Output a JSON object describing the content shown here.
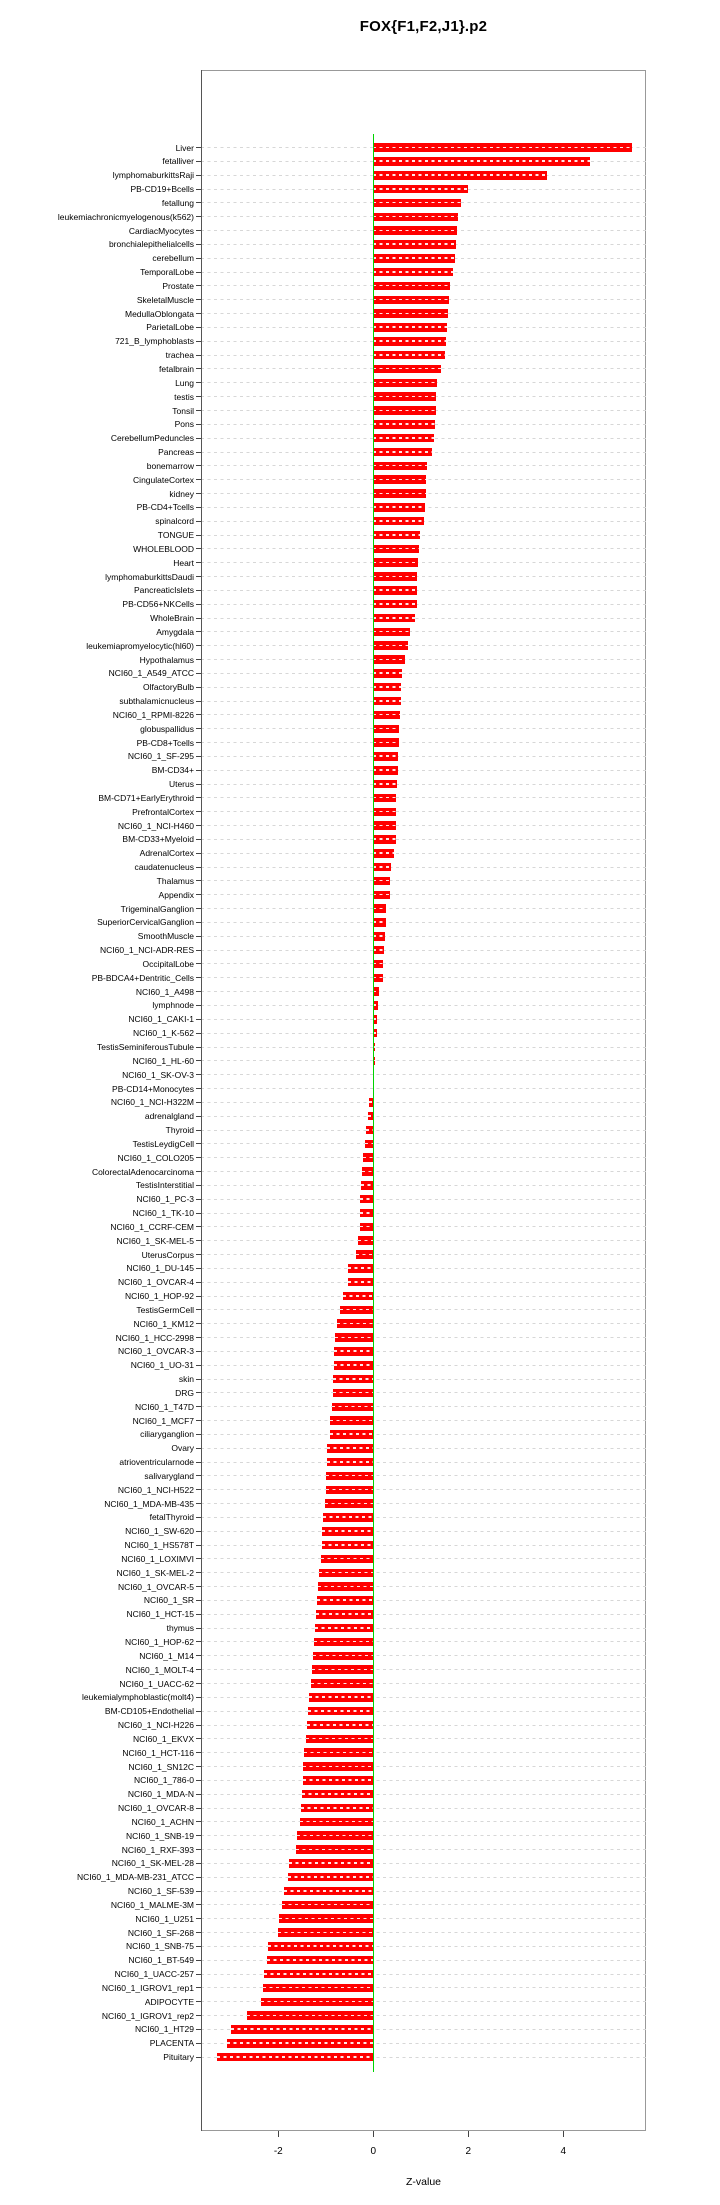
{
  "title": "FOX{F1,F2,J1}.p2",
  "chart_data": {
    "type": "bar",
    "orientation": "horizontal",
    "title": "FOX{F1,F2,J1}.p2",
    "xlabel": "Z-value",
    "x_ticks": [
      -2,
      0,
      2,
      4
    ],
    "xlim": [
      -3.63,
      5.74
    ],
    "grid": true,
    "bar_color": "#FF0000",
    "zero_line_color": "#00D400",
    "categories": [
      "Liver",
      "fetalliver",
      "lymphomaburkittsRaji",
      "PB-CD19+Bcells",
      "fetallung",
      "leukemiachronicmyelogenous(k562)",
      "CardiacMyocytes",
      "bronchialepithelialcells",
      "cerebellum",
      "TemporalLobe",
      "Prostate",
      "SkeletalMuscle",
      "MedullaOblongata",
      "ParietalLobe",
      "721_B_lymphoblasts",
      "trachea",
      "fetalbrain",
      "Lung",
      "testis",
      "Tonsil",
      "Pons",
      "CerebellumPeduncles",
      "Pancreas",
      "bonemarrow",
      "CingulateCortex",
      "kidney",
      "PB-CD4+Tcells",
      "spinalcord",
      "TONGUE",
      "WHOLEBLOOD",
      "Heart",
      "lymphomaburkittsDaudi",
      "PancreaticIslets",
      "PB-CD56+NKCells",
      "WholeBrain",
      "Amygdala",
      "leukemiapromyelocytic(hl60)",
      "Hypothalamus",
      "NCI60_1_A549_ATCC",
      "OlfactoryBulb",
      "subthalamicnucleus",
      "NCI60_1_RPMI-8226",
      "globuspallidus",
      "PB-CD8+Tcells",
      "NCI60_1_SF-295",
      "BM-CD34+",
      "Uterus",
      "BM-CD71+EarlyErythroid",
      "PrefrontalCortex",
      "NCI60_1_NCI-H460",
      "BM-CD33+Myeloid",
      "AdrenalCortex",
      "caudatenucleus",
      "Thalamus",
      "Appendix",
      "TrigeminalGanglion",
      "SuperiorCervicalGanglion",
      "SmoothMuscle",
      "NCI60_1_NCI-ADR-RES",
      "OccipitalLobe",
      "PB-BDCA4+Dentritic_Cells",
      "NCI60_1_A498",
      "lymphnode",
      "NCI60_1_CAKI-1",
      "NCI60_1_K-562",
      "TestisSeminiferousTubule",
      "NCI60_1_HL-60",
      "NCI60_1_SK-OV-3",
      "PB-CD14+Monocytes",
      "NCI60_1_NCI-H322M",
      "adrenalgland",
      "Thyroid",
      "TestisLeydigCell",
      "NCI60_1_COLO205",
      "ColorectalAdenocarcinoma",
      "TestisInterstitial",
      "NCI60_1_PC-3",
      "NCI60_1_TK-10",
      "NCI60_1_CCRF-CEM",
      "NCI60_1_SK-MEL-5",
      "UterusCorpus",
      "NCI60_1_DU-145",
      "NCI60_1_OVCAR-4",
      "NCI60_1_HOP-92",
      "TestisGermCell",
      "NCI60_1_KM12",
      "NCI60_1_HCC-2998",
      "NCI60_1_OVCAR-3",
      "NCI60_1_UO-31",
      "skin",
      "DRG",
      "NCI60_1_T47D",
      "NCI60_1_MCF7",
      "ciliaryganglion",
      "Ovary",
      "atrioventricularnode",
      "salivarygland",
      "NCI60_1_NCI-H522",
      "NCI60_1_MDA-MB-435",
      "fetalThyroid",
      "NCI60_1_SW-620",
      "NCI60_1_HS578T",
      "NCI60_1_LOXIMVI",
      "NCI60_1_SK-MEL-2",
      "NCI60_1_OVCAR-5",
      "NCI60_1_SR",
      "NCI60_1_HCT-15",
      "thymus",
      "NCI60_1_HOP-62",
      "NCI60_1_M14",
      "NCI60_1_MOLT-4",
      "NCI60_1_UACC-62",
      "leukemialymphoblastic(molt4)",
      "BM-CD105+Endothelial",
      "NCI60_1_NCI-H226",
      "NCI60_1_EKVX",
      "NCI60_1_HCT-116",
      "NCI60_1_SN12C",
      "NCI60_1_786-0",
      "NCI60_1_MDA-N",
      "NCI60_1_OVCAR-8",
      "NCI60_1_ACHN",
      "NCI60_1_SNB-19",
      "NCI60_1_RXF-393",
      "NCI60_1_SK-MEL-28",
      "NCI60_1_MDA-MB-231_ATCC",
      "NCI60_1_SF-539",
      "NCI60_1_MALME-3M",
      "NCI60_1_U251",
      "NCI60_1_SF-268",
      "NCI60_1_SNB-75",
      "NCI60_1_BT-549",
      "NCI60_1_UACC-257",
      "NCI60_1_IGROV1_rep1",
      "ADIPOCYTE",
      "NCI60_1_IGROV1_rep2",
      "NCI60_1_HT29",
      "PLACENTA",
      "Pituitary"
    ],
    "values": [
      5.45,
      4.57,
      3.66,
      2.0,
      1.85,
      1.79,
      1.76,
      1.74,
      1.72,
      1.68,
      1.61,
      1.59,
      1.57,
      1.56,
      1.53,
      1.51,
      1.42,
      1.35,
      1.33,
      1.32,
      1.29,
      1.28,
      1.23,
      1.13,
      1.12,
      1.11,
      1.09,
      1.06,
      0.99,
      0.96,
      0.94,
      0.93,
      0.92,
      0.91,
      0.87,
      0.77,
      0.74,
      0.66,
      0.6,
      0.59,
      0.58,
      0.56,
      0.55,
      0.54,
      0.53,
      0.51,
      0.49,
      0.48,
      0.48,
      0.48,
      0.47,
      0.44,
      0.37,
      0.36,
      0.35,
      0.27,
      0.26,
      0.24,
      0.23,
      0.21,
      0.2,
      0.13,
      0.09,
      0.08,
      0.08,
      0.04,
      0.03,
      0.02,
      0.01,
      -0.09,
      -0.11,
      -0.16,
      -0.18,
      -0.21,
      -0.24,
      -0.25,
      -0.27,
      -0.28,
      -0.29,
      -0.32,
      -0.36,
      -0.53,
      -0.54,
      -0.63,
      -0.7,
      -0.76,
      -0.8,
      -0.82,
      -0.83,
      -0.84,
      -0.85,
      -0.86,
      -0.91,
      -0.92,
      -0.97,
      -0.98,
      -0.99,
      -1.0,
      -1.01,
      -1.05,
      -1.07,
      -1.08,
      -1.11,
      -1.14,
      -1.16,
      -1.18,
      -1.2,
      -1.22,
      -1.25,
      -1.27,
      -1.3,
      -1.32,
      -1.35,
      -1.38,
      -1.4,
      -1.42,
      -1.45,
      -1.47,
      -1.49,
      -1.51,
      -1.53,
      -1.55,
      -1.61,
      -1.62,
      -1.77,
      -1.79,
      -1.88,
      -1.92,
      -1.98,
      -2.01,
      -2.21,
      -2.24,
      -2.3,
      -2.32,
      -2.37,
      -2.65,
      -2.99,
      -3.09,
      -3.29
    ]
  }
}
